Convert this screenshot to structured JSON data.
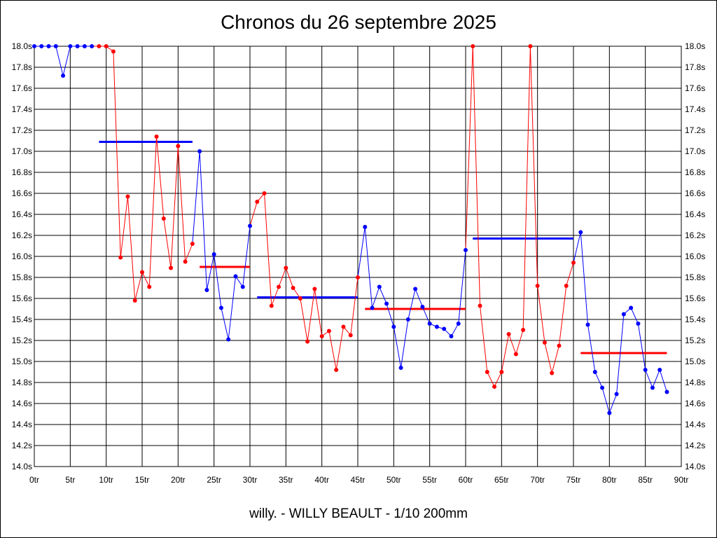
{
  "title": "Chronos du 26 septembre 2025",
  "footer": "willy. - WILLY BEAULT - 1/10 200mm",
  "chart_data": {
    "type": "line",
    "title": "Chronos du 26 septembre 2025",
    "xlabel": "",
    "ylabel": "",
    "xlim": [
      0,
      90
    ],
    "ylim": [
      14.0,
      18.0
    ],
    "x_ticks": [
      0,
      5,
      10,
      15,
      20,
      25,
      30,
      35,
      40,
      45,
      50,
      55,
      60,
      65,
      70,
      75,
      80,
      85,
      90
    ],
    "x_tick_labels": [
      "0tr",
      "5tr",
      "10tr",
      "15tr",
      "20tr",
      "25tr",
      "30tr",
      "35tr",
      "40tr",
      "45tr",
      "50tr",
      "55tr",
      "60tr",
      "65tr",
      "70tr",
      "75tr",
      "80tr",
      "85tr",
      "90tr"
    ],
    "y_ticks": [
      14.0,
      14.2,
      14.4,
      14.6,
      14.8,
      15.0,
      15.2,
      15.4,
      15.6,
      15.8,
      16.0,
      16.2,
      16.4,
      16.6,
      16.8,
      17.0,
      17.2,
      17.4,
      17.6,
      17.8,
      18.0
    ],
    "y_tick_labels": [
      "14.0s",
      "14.2s",
      "14.4s",
      "14.6s",
      "14.8s",
      "15.0s",
      "15.2s",
      "15.4s",
      "15.6s",
      "15.8s",
      "16.0s",
      "16.2s",
      "16.4s",
      "16.6s",
      "16.8s",
      "17.0s",
      "17.2s",
      "17.4s",
      "17.6s",
      "17.8s",
      "18.0s"
    ],
    "grid": true,
    "colors": {
      "blue": "#0000ff",
      "red": "#ff0000"
    },
    "segments": [
      {
        "color": "blue",
        "x": [
          0,
          1,
          2,
          3,
          4,
          5,
          6,
          7,
          8
        ],
        "y": [
          18.0,
          18.0,
          18.0,
          18.0,
          17.72,
          18.0,
          18.0,
          18.0,
          18.0
        ]
      },
      {
        "color": "red",
        "x": [
          9,
          10,
          11,
          12,
          13,
          14,
          15,
          16,
          17,
          18,
          19,
          20,
          21,
          22
        ],
        "y": [
          18.0,
          18.0,
          17.95,
          15.99,
          16.57,
          15.58,
          15.85,
          15.71,
          17.14,
          16.36,
          15.89,
          17.05,
          15.95,
          16.12
        ]
      },
      {
        "color": "blue",
        "x": [
          23,
          24,
          25,
          26,
          27,
          28,
          29,
          30
        ],
        "y": [
          17.0,
          15.68,
          16.02,
          15.51,
          15.21,
          15.81,
          15.71,
          16.29
        ]
      },
      {
        "color": "red",
        "x": [
          31,
          32,
          33,
          34,
          35,
          36,
          37,
          38,
          39,
          40,
          41,
          42,
          43,
          44,
          45
        ],
        "y": [
          16.52,
          16.6,
          15.53,
          15.71,
          15.89,
          15.7,
          15.6,
          15.19,
          15.69,
          15.24,
          15.29,
          14.92,
          15.33,
          15.25,
          15.8
        ]
      },
      {
        "color": "blue",
        "x": [
          46,
          47,
          48,
          49,
          50,
          51,
          52,
          53,
          54,
          55,
          56,
          57,
          58,
          59,
          60
        ],
        "y": [
          16.28,
          15.51,
          15.71,
          15.55,
          15.33,
          14.94,
          15.4,
          15.69,
          15.52,
          15.36,
          15.33,
          15.31,
          15.24,
          15.36,
          16.06
        ]
      },
      {
        "color": "red",
        "x": [
          61,
          62,
          63,
          64,
          65,
          66,
          67,
          68,
          69,
          70,
          71,
          72,
          73,
          74,
          75
        ],
        "y": [
          18.0,
          15.53,
          14.9,
          14.76,
          14.9,
          15.26,
          15.07,
          15.3,
          18.0,
          15.72,
          15.18,
          14.89,
          15.15,
          15.72,
          15.94
        ]
      },
      {
        "color": "blue",
        "x": [
          76,
          77,
          78,
          79,
          80,
          81,
          82,
          83,
          84,
          85,
          86,
          87,
          88
        ],
        "y": [
          16.23,
          15.35,
          14.9,
          14.75,
          14.51,
          14.69,
          15.45,
          15.51,
          15.36,
          14.92,
          14.75,
          14.92,
          14.71
        ]
      }
    ],
    "averages": [
      {
        "color": "blue",
        "x_start": 9,
        "x_end": 22,
        "y": 17.09
      },
      {
        "color": "red",
        "x_start": 23,
        "x_end": 30,
        "y": 15.9
      },
      {
        "color": "blue",
        "x_start": 31,
        "x_end": 45,
        "y": 15.61
      },
      {
        "color": "red",
        "x_start": 46,
        "x_end": 60,
        "y": 15.5
      },
      {
        "color": "blue",
        "x_start": 61,
        "x_end": 75,
        "y": 16.17
      },
      {
        "color": "red",
        "x_start": 76,
        "x_end": 88,
        "y": 15.08
      }
    ]
  }
}
